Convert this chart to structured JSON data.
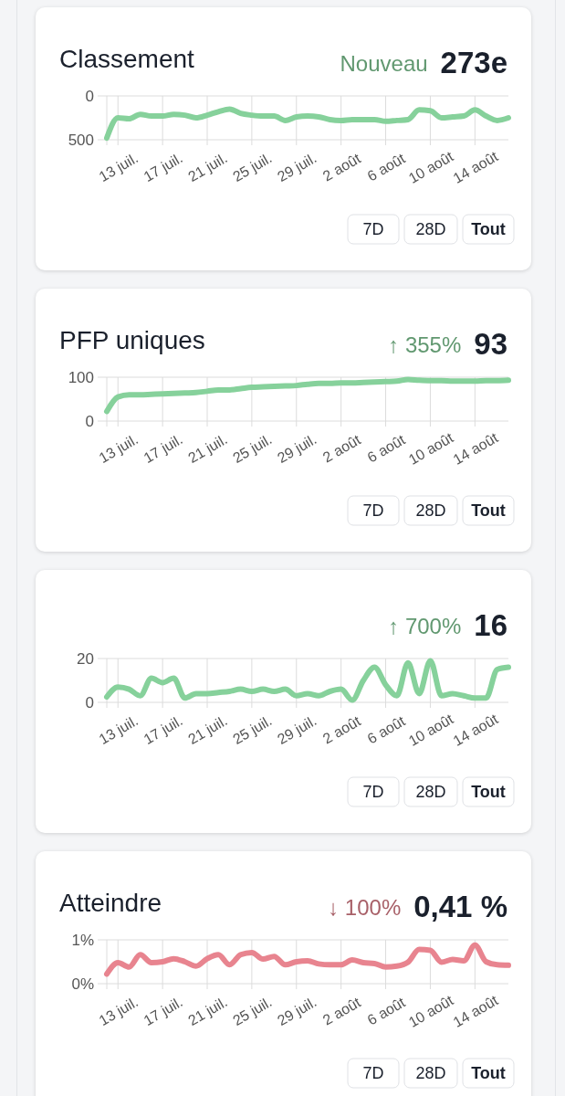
{
  "chart_data": [
    {
      "type": "line",
      "title": "Classement",
      "annotations": [
        "Nouveau",
        "273e",
        "7D",
        "28D",
        "Tout"
      ],
      "x": [
        "--07-12",
        "--07-13",
        "--07-14",
        "--07-15",
        "--07-16",
        "--07-17",
        "--07-18",
        "--07-19",
        "--07-20",
        "--07-21",
        "--07-22",
        "--07-23",
        "--07-24",
        "--07-25",
        "--07-26",
        "--07-27",
        "--07-28",
        "--07-29",
        "--07-30",
        "--07-31",
        "--08-01",
        "--08-02",
        "--08-03",
        "--08-04",
        "--08-05",
        "--08-06",
        "--08-07",
        "--08-08",
        "--08-09",
        "--08-10",
        "--08-11",
        "--08-12",
        "--08-13",
        "--08-14",
        "--08-15",
        "--08-16",
        "--08-17"
      ],
      "series": [
        {
          "color": "#86d19b",
          "values": [
            480,
            250,
            260,
            210,
            230,
            230,
            210,
            220,
            250,
            220,
            180,
            150,
            200,
            220,
            230,
            230,
            280,
            240,
            230,
            240,
            270,
            280,
            270,
            270,
            270,
            290,
            280,
            270,
            160,
            170,
            250,
            240,
            230,
            160,
            230,
            280,
            250
          ]
        }
      ],
      "xlim": [
        "--07-12",
        "--08-17"
      ],
      "xticks": [
        {
          "value": "--07-13",
          "label": "13 juil."
        },
        {
          "value": "--07-17",
          "label": "17 juil."
        },
        {
          "value": "--07-21",
          "label": "21 juil."
        },
        {
          "value": "--07-25",
          "label": "25 juil."
        },
        {
          "value": "--07-29",
          "label": "29 juil."
        },
        {
          "value": "--08-02",
          "label": "2 août"
        },
        {
          "value": "--08-06",
          "label": "6 août"
        },
        {
          "value": "--08-10",
          "label": "10 août"
        },
        {
          "value": "--08-14",
          "label": "14 août"
        }
      ],
      "ylim": [
        500,
        0
      ],
      "yticks": [
        0,
        500
      ],
      "grid": true
    },
    {
      "type": "line",
      "title": "PFP uniques",
      "annotations": [
        "↑ 355%",
        "93",
        "7D",
        "28D",
        "Tout"
      ],
      "x": [
        "--07-12",
        "--07-13",
        "--07-14",
        "--07-15",
        "--07-16",
        "--07-17",
        "--07-18",
        "--07-19",
        "--07-20",
        "--07-21",
        "--07-22",
        "--07-23",
        "--07-24",
        "--07-25",
        "--07-26",
        "--07-27",
        "--07-28",
        "--07-29",
        "--07-30",
        "--07-31",
        "--08-01",
        "--08-02",
        "--08-03",
        "--08-04",
        "--08-05",
        "--08-06",
        "--08-07",
        "--08-08",
        "--08-09",
        "--08-10",
        "--08-11",
        "--08-12",
        "--08-13",
        "--08-14",
        "--08-15",
        "--08-16",
        "--08-17"
      ],
      "series": [
        {
          "color": "#86d19b",
          "values": [
            22,
            55,
            60,
            60,
            61,
            62,
            63,
            64,
            65,
            68,
            71,
            71,
            74,
            77,
            78,
            79,
            80,
            81,
            84,
            86,
            86,
            87,
            87,
            88,
            89,
            90,
            91,
            95,
            93,
            92,
            92,
            91,
            91,
            91,
            92,
            92,
            93
          ]
        }
      ],
      "xlim": [
        "--07-12",
        "--08-17"
      ],
      "xticks": [
        {
          "value": "--07-13",
          "label": "13 juil."
        },
        {
          "value": "--07-17",
          "label": "17 juil."
        },
        {
          "value": "--07-21",
          "label": "21 juil."
        },
        {
          "value": "--07-25",
          "label": "25 juil."
        },
        {
          "value": "--07-29",
          "label": "29 juil."
        },
        {
          "value": "--08-02",
          "label": "2 août"
        },
        {
          "value": "--08-06",
          "label": "6 août"
        },
        {
          "value": "--08-10",
          "label": "10 août"
        },
        {
          "value": "--08-14",
          "label": "14 août"
        }
      ],
      "ylim": [
        0,
        100
      ],
      "yticks": [
        0,
        100
      ],
      "grid": true
    },
    {
      "type": "line",
      "annotations": [
        "↑ 700%",
        "16",
        "7D",
        "28D",
        "Tout"
      ],
      "x": [
        "--07-12",
        "--07-13",
        "--07-14",
        "--07-15",
        "--07-16",
        "--07-17",
        "--07-18",
        "--07-19",
        "--07-20",
        "--07-21",
        "--07-22",
        "--07-23",
        "--07-24",
        "--07-25",
        "--07-26",
        "--07-27",
        "--07-28",
        "--07-29",
        "--07-30",
        "--07-31",
        "--08-01",
        "--08-02",
        "--08-03",
        "--08-04",
        "--08-05",
        "--08-06",
        "--08-07",
        "--08-08",
        "--08-09",
        "--08-10",
        "--08-11",
        "--08-12",
        "--08-13",
        "--08-14",
        "--08-15",
        "--08-16",
        "--08-17"
      ],
      "series": [
        {
          "color": "#86d19b",
          "values": [
            2.5,
            7,
            6,
            3,
            11,
            9,
            11,
            2,
            4,
            4,
            4.5,
            5,
            6,
            5,
            6,
            5,
            6,
            3,
            4,
            3,
            5,
            6,
            1,
            10,
            16,
            8,
            3,
            18,
            4,
            19,
            3,
            4,
            3,
            2,
            2,
            15,
            16
          ]
        }
      ],
      "xlim": [
        "--07-12",
        "--08-17"
      ],
      "xticks": [
        {
          "value": "--07-13",
          "label": "13 juil."
        },
        {
          "value": "--07-17",
          "label": "17 juil."
        },
        {
          "value": "--07-21",
          "label": "21 juil."
        },
        {
          "value": "--07-25",
          "label": "25 juil."
        },
        {
          "value": "--07-29",
          "label": "29 juil."
        },
        {
          "value": "--08-02",
          "label": "2 août"
        },
        {
          "value": "--08-06",
          "label": "6 août"
        },
        {
          "value": "--08-10",
          "label": "10 août"
        },
        {
          "value": "--08-14",
          "label": "14 août"
        }
      ],
      "ylim": [
        0,
        20
      ],
      "yticks": [
        0,
        20
      ],
      "grid": true
    },
    {
      "type": "line",
      "title": "Atteindre",
      "annotations": [
        "↓ 100%",
        "0,41 %",
        "7D",
        "28D",
        "Tout"
      ],
      "x": [
        "--07-12",
        "--07-13",
        "--07-14",
        "--07-15",
        "--07-16",
        "--07-17",
        "--07-18",
        "--07-19",
        "--07-20",
        "--07-21",
        "--07-22",
        "--07-23",
        "--07-24",
        "--07-25",
        "--07-26",
        "--07-27",
        "--07-28",
        "--07-29",
        "--07-30",
        "--07-31",
        "--08-01",
        "--08-02",
        "--08-03",
        "--08-04",
        "--08-05",
        "--08-06",
        "--08-07",
        "--08-08",
        "--08-09",
        "--08-10",
        "--08-11",
        "--08-12",
        "--08-13",
        "--08-14",
        "--08-15",
        "--08-16",
        "--08-17"
      ],
      "series": [
        {
          "color": "#e8848f",
          "values": [
            0.22,
            0.48,
            0.38,
            0.66,
            0.48,
            0.5,
            0.57,
            0.5,
            0.4,
            0.57,
            0.66,
            0.43,
            0.66,
            0.71,
            0.56,
            0.62,
            0.43,
            0.5,
            0.52,
            0.45,
            0.43,
            0.43,
            0.54,
            0.48,
            0.46,
            0.38,
            0.4,
            0.49,
            0.78,
            0.76,
            0.49,
            0.55,
            0.52,
            0.88,
            0.5,
            0.43,
            0.42
          ]
        }
      ],
      "xlim": [
        "--07-12",
        "--08-17"
      ],
      "xticks": [
        {
          "value": "--07-13",
          "label": "13 juil."
        },
        {
          "value": "--07-17",
          "label": "17 juil."
        },
        {
          "value": "--07-21",
          "label": "21 juil."
        },
        {
          "value": "--07-25",
          "label": "25 juil."
        },
        {
          "value": "--07-29",
          "label": "29 juil."
        },
        {
          "value": "--08-02",
          "label": "2 août"
        },
        {
          "value": "--08-06",
          "label": "6 août"
        },
        {
          "value": "--08-10",
          "label": "10 août"
        },
        {
          "value": "--08-14",
          "label": "14 août"
        }
      ],
      "ylim": [
        0,
        1
      ],
      "yticks": [
        {
          "value": 0,
          "label": "0%"
        },
        {
          "value": 1,
          "label": "1%"
        }
      ],
      "grid": true
    }
  ]
}
